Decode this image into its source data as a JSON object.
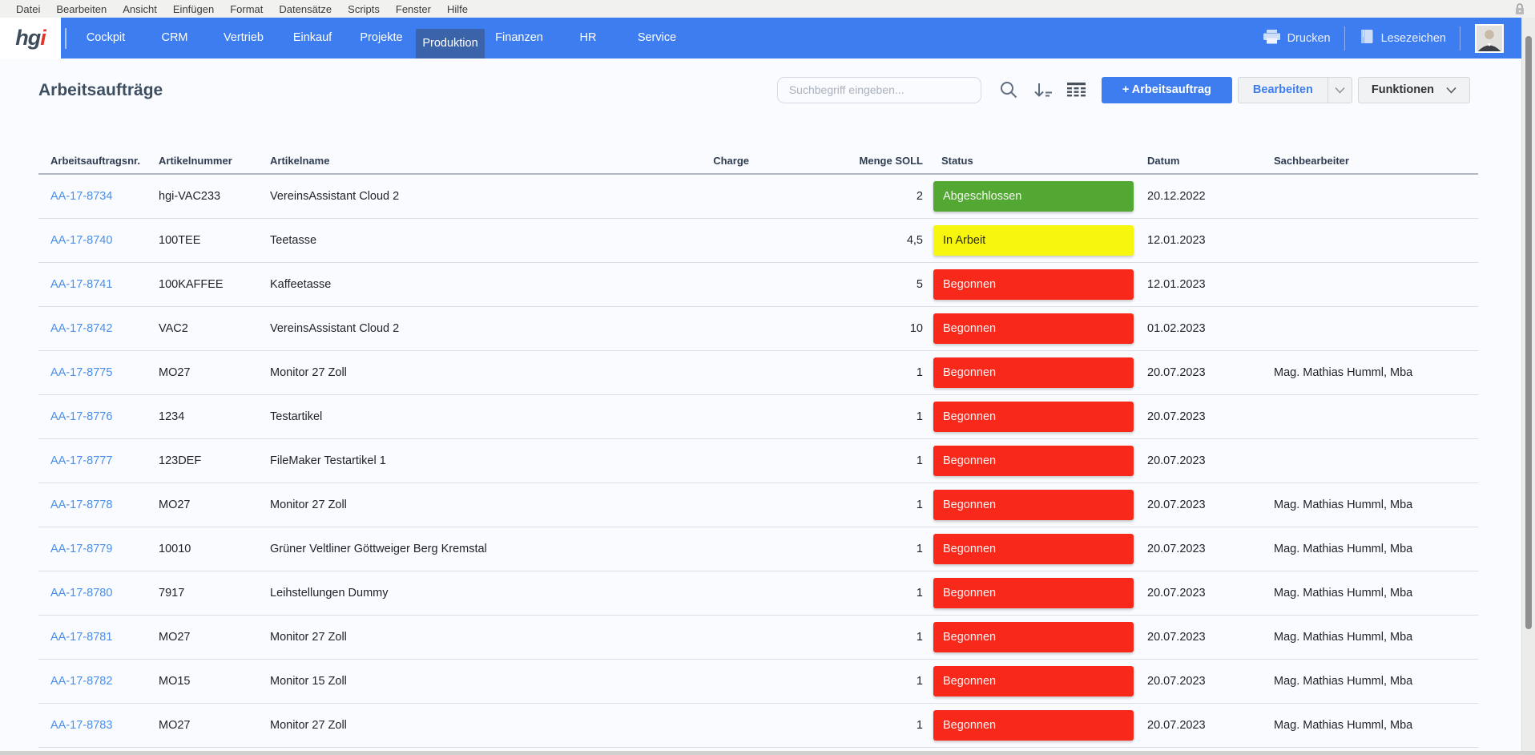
{
  "menu_bar": {
    "items": [
      "Datei",
      "Bearbeiten",
      "Ansicht",
      "Einfügen",
      "Format",
      "Datensätze",
      "Scripts",
      "Fenster",
      "Hilfe"
    ]
  },
  "nav": {
    "logo_main": "hg",
    "logo_accent": "i",
    "tabs": [
      {
        "label": "Cockpit",
        "active": false
      },
      {
        "label": "CRM",
        "active": false
      },
      {
        "label": "Vertrieb",
        "active": false
      },
      {
        "label": "Einkauf",
        "active": false
      },
      {
        "label": "Projekte",
        "active": false
      },
      {
        "label": "Produktion",
        "active": true
      },
      {
        "label": "Finanzen",
        "active": false
      },
      {
        "label": "HR",
        "active": false
      },
      {
        "label": "Service",
        "active": false
      }
    ],
    "print_label": "Drucken",
    "bookmark_label": "Lesezeichen"
  },
  "toolbar": {
    "title": "Arbeitsaufträge",
    "search_placeholder": "Suchbegriff eingeben...",
    "add_button": "+ Arbeitsauftrag",
    "edit_button": "Bearbeiten",
    "functions_button": "Funktionen"
  },
  "icons": {
    "search": "magnifier-icon",
    "sort": "sort-descending-icon",
    "grid": "table-view-icon",
    "print": "printer-icon",
    "bookmark": "book-icon",
    "lock": "padlock-icon",
    "chevron": "chevron-down-icon",
    "avatar": "user-photo"
  },
  "colors": {
    "nav_blue": "#3e7df0",
    "active_tab_blue": "#3a63a9",
    "status_green": "#53a733",
    "status_yellow": "#f6f60e",
    "status_red": "#f8281a",
    "link_blue": "#4a8fe8"
  },
  "table": {
    "columns": [
      "Arbeitsauftragsnr.",
      "Artikelnummer",
      "Artikelname",
      "Charge",
      "Menge SOLL",
      "Status",
      "Datum",
      "Sachbearbeiter"
    ],
    "rows": [
      {
        "nr": "AA-17-8734",
        "artikelnummer": "hgi-VAC233",
        "artikelname": "VereinsAssistant Cloud 2",
        "charge": "",
        "menge": "2",
        "status": "Abgeschlossen",
        "status_color": "green",
        "datum": "20.12.2022",
        "sachbearbeiter": ""
      },
      {
        "nr": "AA-17-8740",
        "artikelnummer": "100TEE",
        "artikelname": "Teetasse",
        "charge": "",
        "menge": "4,5",
        "status": "In Arbeit",
        "status_color": "yellow",
        "datum": "12.01.2023",
        "sachbearbeiter": ""
      },
      {
        "nr": "AA-17-8741",
        "artikelnummer": "100KAFFEE",
        "artikelname": "Kaffeetasse",
        "charge": "",
        "menge": "5",
        "status": "Begonnen",
        "status_color": "red",
        "datum": "12.01.2023",
        "sachbearbeiter": ""
      },
      {
        "nr": "AA-17-8742",
        "artikelnummer": "VAC2",
        "artikelname": "VereinsAssistant Cloud 2",
        "charge": "",
        "menge": "10",
        "status": "Begonnen",
        "status_color": "red",
        "datum": "01.02.2023",
        "sachbearbeiter": ""
      },
      {
        "nr": "AA-17-8775",
        "artikelnummer": "MO27",
        "artikelname": "Monitor 27 Zoll",
        "charge": "",
        "menge": "1",
        "status": "Begonnen",
        "status_color": "red",
        "datum": "20.07.2023",
        "sachbearbeiter": "Mag. Mathias Humml, Mba"
      },
      {
        "nr": "AA-17-8776",
        "artikelnummer": "1234",
        "artikelname": "Testartikel",
        "charge": "",
        "menge": "1",
        "status": "Begonnen",
        "status_color": "red",
        "datum": "20.07.2023",
        "sachbearbeiter": ""
      },
      {
        "nr": "AA-17-8777",
        "artikelnummer": "123DEF",
        "artikelname": "FileMaker Testartikel 1",
        "charge": "",
        "menge": "1",
        "status": "Begonnen",
        "status_color": "red",
        "datum": "20.07.2023",
        "sachbearbeiter": ""
      },
      {
        "nr": "AA-17-8778",
        "artikelnummer": "MO27",
        "artikelname": "Monitor 27 Zoll",
        "charge": "",
        "menge": "1",
        "status": "Begonnen",
        "status_color": "red",
        "datum": "20.07.2023",
        "sachbearbeiter": "Mag. Mathias Humml, Mba"
      },
      {
        "nr": "AA-17-8779",
        "artikelnummer": "10010",
        "artikelname": "Grüner Veltliner Göttweiger Berg Kremstal",
        "charge": "",
        "menge": "1",
        "status": "Begonnen",
        "status_color": "red",
        "datum": "20.07.2023",
        "sachbearbeiter": "Mag. Mathias Humml, Mba"
      },
      {
        "nr": "AA-17-8780",
        "artikelnummer": "7917",
        "artikelname": "Leihstellungen Dummy",
        "charge": "",
        "menge": "1",
        "status": "Begonnen",
        "status_color": "red",
        "datum": "20.07.2023",
        "sachbearbeiter": "Mag. Mathias Humml, Mba"
      },
      {
        "nr": "AA-17-8781",
        "artikelnummer": "MO27",
        "artikelname": "Monitor 27 Zoll",
        "charge": "",
        "menge": "1",
        "status": "Begonnen",
        "status_color": "red",
        "datum": "20.07.2023",
        "sachbearbeiter": "Mag. Mathias Humml, Mba"
      },
      {
        "nr": "AA-17-8782",
        "artikelnummer": "MO15",
        "artikelname": "Monitor 15 Zoll",
        "charge": "",
        "menge": "1",
        "status": "Begonnen",
        "status_color": "red",
        "datum": "20.07.2023",
        "sachbearbeiter": "Mag. Mathias Humml, Mba"
      },
      {
        "nr": "AA-17-8783",
        "artikelnummer": "MO27",
        "artikelname": "Monitor 27 Zoll",
        "charge": "",
        "menge": "1",
        "status": "Begonnen",
        "status_color": "red",
        "datum": "20.07.2023",
        "sachbearbeiter": "Mag. Mathias Humml, Mba"
      }
    ]
  }
}
